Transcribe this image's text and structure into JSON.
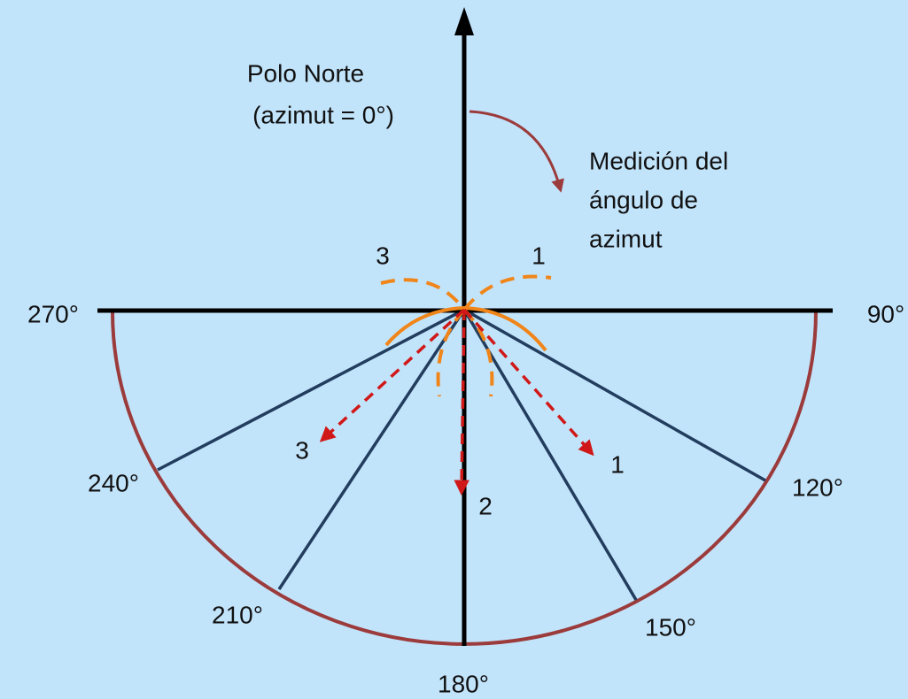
{
  "north_label": [
    "Polo Norte",
    "(azimut = 0°)"
  ],
  "measurement_label": [
    "Medición del",
    "ángulo de",
    "azimut"
  ],
  "top_numbers": [
    "3",
    "1"
  ],
  "path_numbers": [
    "1",
    "2",
    "3"
  ],
  "degree_labels": {
    "d270": "270°",
    "d90": "90°",
    "d240": "240°",
    "d120": "120°",
    "d210": "210°",
    "d150": "150°",
    "d180": "180°"
  }
}
